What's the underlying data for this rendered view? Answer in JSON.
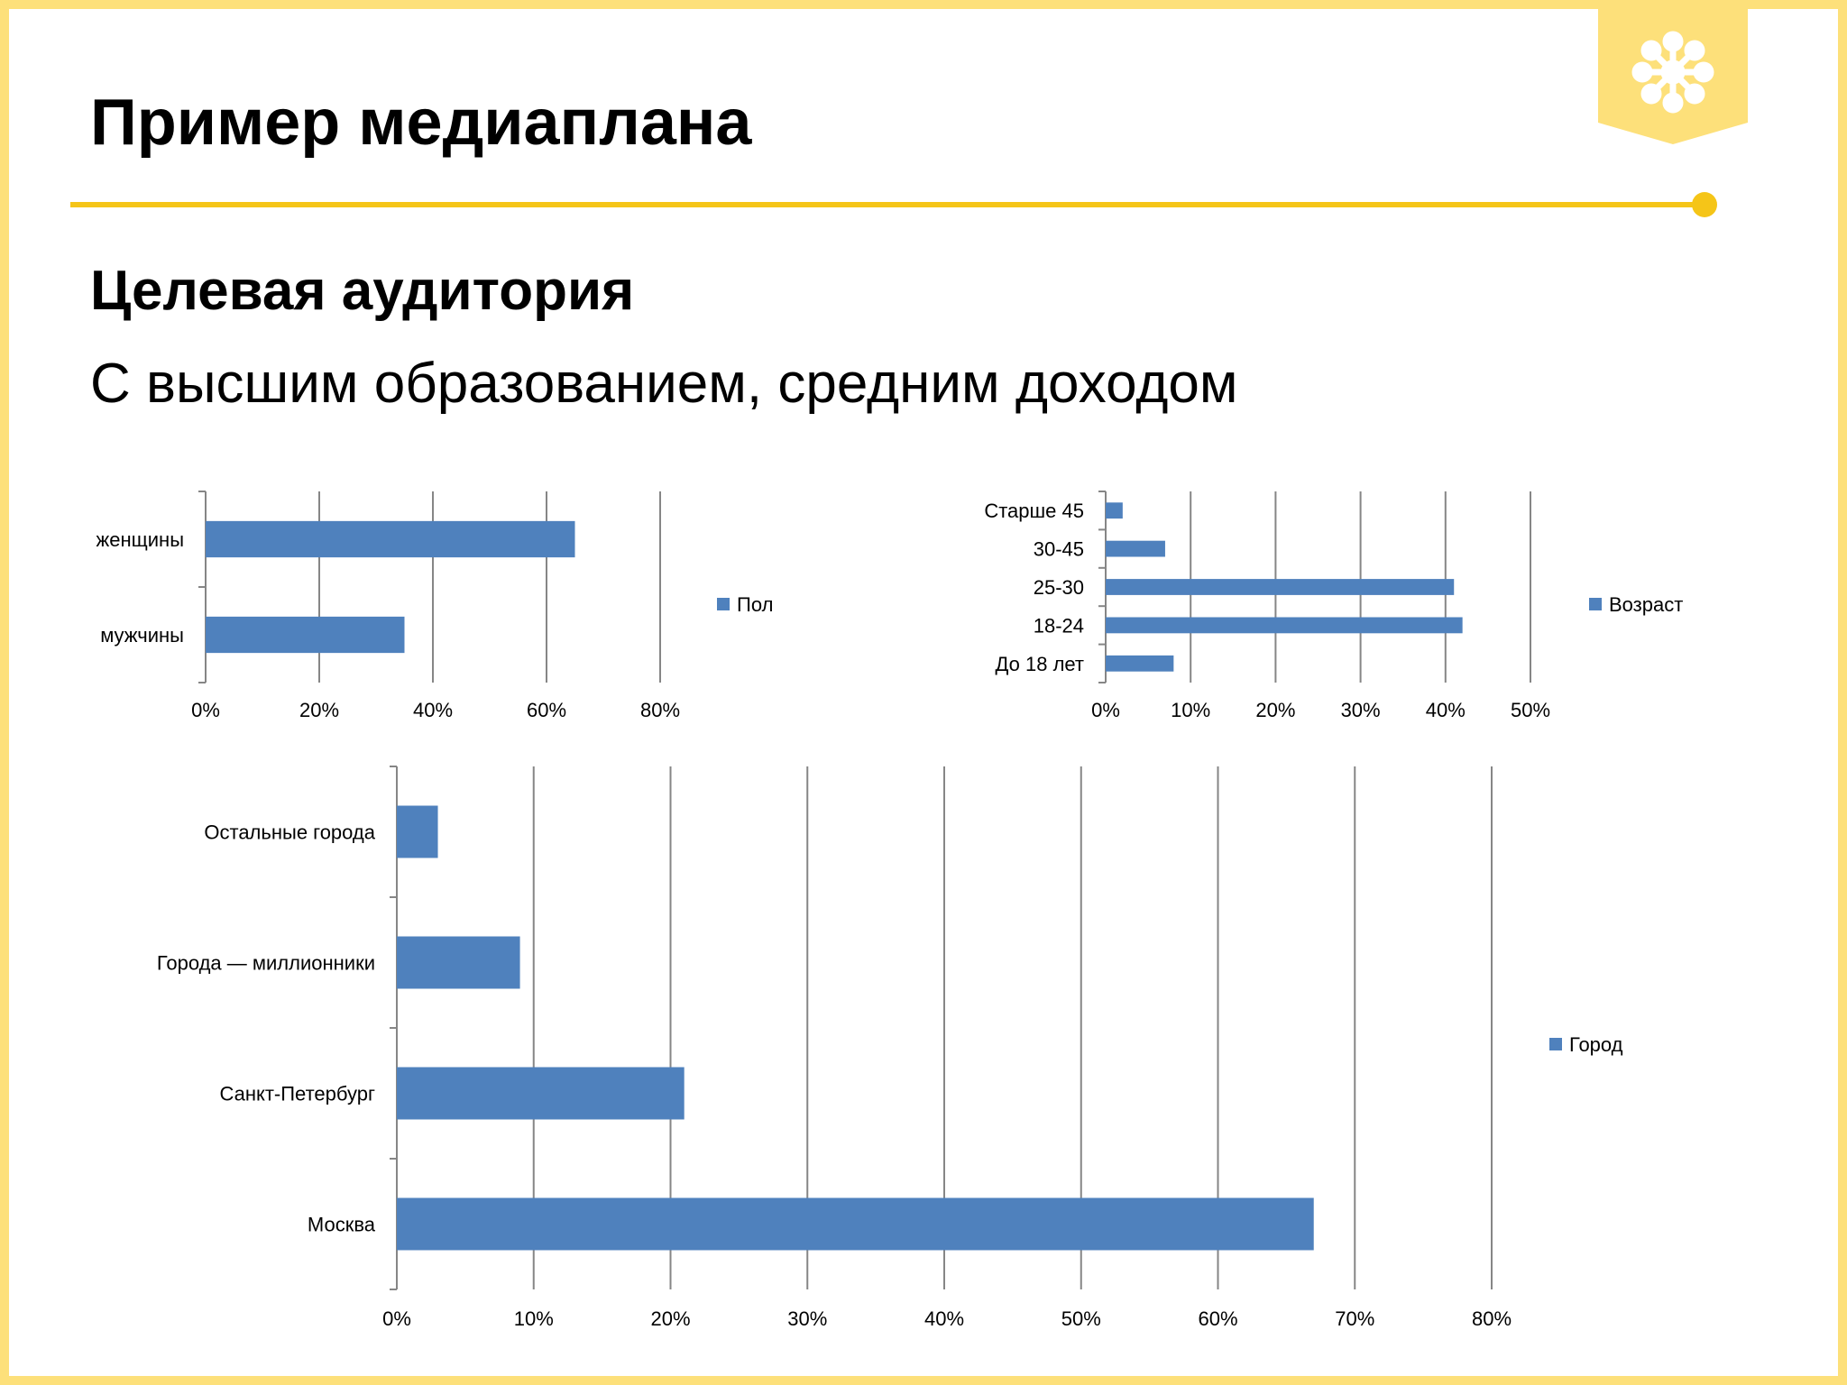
{
  "slide": {
    "title": "Пример медиаплана",
    "subtitle": "Целевая аудитория",
    "description": "С высшим образованием, средним доходом"
  },
  "colors": {
    "accent": "#f5c518",
    "frame": "#fde07a",
    "bar": "#4f81bd",
    "grid": "#868686"
  },
  "chart_data": [
    {
      "type": "bar",
      "orientation": "horizontal",
      "categories": [
        "мужчины",
        "женщины"
      ],
      "series": [
        {
          "name": "Пол",
          "values": [
            35,
            65
          ]
        }
      ],
      "xlim": [
        0,
        80
      ],
      "ticks": [
        "0%",
        "20%",
        "40%",
        "60%",
        "80%"
      ],
      "tick_step": 20,
      "grid": true,
      "legend": "right"
    },
    {
      "type": "bar",
      "orientation": "horizontal",
      "categories": [
        "До 18 лет",
        "18-24",
        "25-30",
        "30-45",
        "Старше 45"
      ],
      "series": [
        {
          "name": "Возраст",
          "values": [
            8,
            42,
            41,
            7,
            2
          ]
        }
      ],
      "xlim": [
        0,
        50
      ],
      "ticks": [
        "0%",
        "10%",
        "20%",
        "30%",
        "40%",
        "50%"
      ],
      "tick_step": 10,
      "grid": true,
      "legend": "right"
    },
    {
      "type": "bar",
      "orientation": "horizontal",
      "categories": [
        "Москва",
        "Санкт-Петербург",
        "Города — миллионники",
        "Остальные города"
      ],
      "series": [
        {
          "name": "Город",
          "values": [
            67,
            21,
            9,
            3
          ]
        }
      ],
      "xlim": [
        0,
        80
      ],
      "ticks": [
        "0%",
        "10%",
        "20%",
        "30%",
        "40%",
        "50%",
        "60%",
        "70%",
        "80%"
      ],
      "tick_step": 10,
      "grid": true,
      "legend": "right"
    }
  ]
}
